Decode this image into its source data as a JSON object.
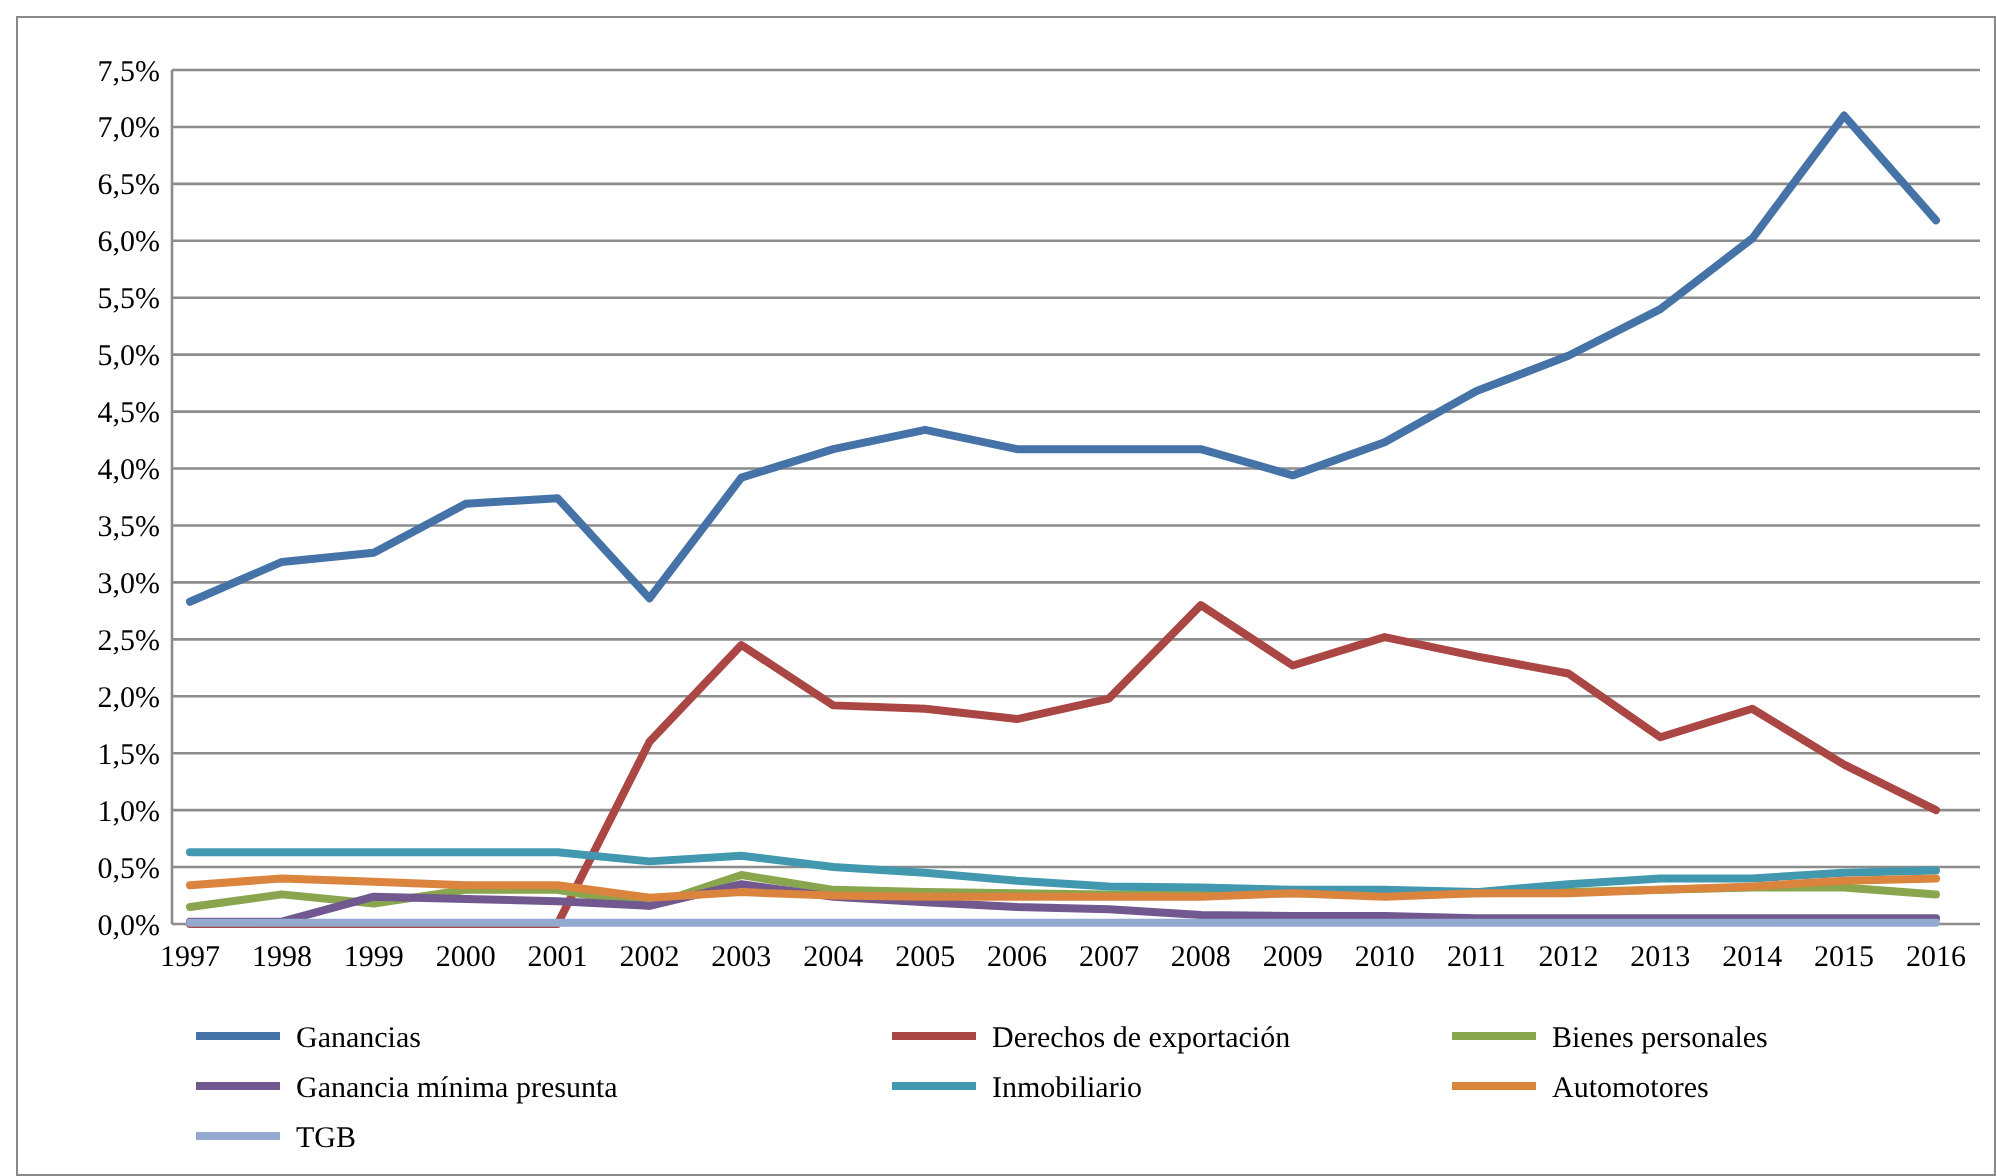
{
  "chart_data": {
    "type": "line",
    "categories": [
      "1997",
      "1998",
      "1999",
      "2000",
      "2001",
      "2002",
      "2003",
      "2004",
      "2005",
      "2006",
      "2007",
      "2008",
      "2009",
      "2010",
      "2011",
      "2012",
      "2013",
      "2014",
      "2015",
      "2016"
    ],
    "ylim": [
      0,
      7.5
    ],
    "yticks": [
      {
        "value": 0,
        "label": "0,0%"
      },
      {
        "value": 0.5,
        "label": "0,5%"
      },
      {
        "value": 1,
        "label": "1,0%"
      },
      {
        "value": 1.5,
        "label": "1,5%"
      },
      {
        "value": 2,
        "label": "2,0%"
      },
      {
        "value": 2.5,
        "label": "2,5%"
      },
      {
        "value": 3,
        "label": "3,0%"
      },
      {
        "value": 3.5,
        "label": "3,5%"
      },
      {
        "value": 4,
        "label": "4,0%"
      },
      {
        "value": 4.5,
        "label": "4,5%"
      },
      {
        "value": 5,
        "label": "5,0%"
      },
      {
        "value": 5.5,
        "label": "5,5%"
      },
      {
        "value": 6,
        "label": "6,0%"
      },
      {
        "value": 6.5,
        "label": "6,5%"
      },
      {
        "value": 7,
        "label": "7,0%"
      },
      {
        "value": 7.5,
        "label": "7,5%"
      }
    ],
    "grid": "y",
    "legend": "bottom",
    "marker": "none",
    "line_style": "solid",
    "series": [
      {
        "name": "Ganancias",
        "color": "#4572a7",
        "values": [
          2.83,
          3.18,
          3.26,
          3.69,
          3.74,
          2.86,
          3.92,
          4.17,
          4.34,
          4.17,
          4.17,
          4.17,
          3.94,
          4.23,
          4.68,
          4.99,
          5.4,
          6.02,
          7.1,
          6.18
        ]
      },
      {
        "name": "Derechos de exportación",
        "color": "#aa4643",
        "values": [
          0,
          0,
          0,
          0,
          0,
          1.6,
          2.45,
          1.92,
          1.89,
          1.8,
          1.98,
          2.8,
          2.27,
          2.52,
          2.35,
          2.2,
          1.64,
          1.89,
          1.4,
          1.0
        ]
      },
      {
        "name": "Bienes personales",
        "color": "#89a54e",
        "values": [
          0.15,
          0.26,
          0.18,
          0.3,
          0.3,
          0.16,
          0.43,
          0.3,
          0.28,
          0.27,
          0.26,
          0.27,
          0.27,
          0.27,
          0.27,
          0.28,
          0.3,
          0.32,
          0.32,
          0.26
        ]
      },
      {
        "name": "Ganancia mínima presunta",
        "color": "#71588f",
        "values": [
          0.02,
          0.02,
          0.24,
          0.22,
          0.2,
          0.16,
          0.35,
          0.24,
          0.19,
          0.15,
          0.13,
          0.08,
          0.07,
          0.07,
          0.05,
          0.05,
          0.05,
          0.05,
          0.05,
          0.05
        ]
      },
      {
        "name": "Inmobiliario",
        "color": "#4198af",
        "values": [
          0.63,
          0.63,
          0.63,
          0.63,
          0.63,
          0.55,
          0.6,
          0.5,
          0.45,
          0.38,
          0.33,
          0.32,
          0.3,
          0.3,
          0.28,
          0.35,
          0.4,
          0.4,
          0.45,
          0.47
        ]
      },
      {
        "name": "Automotores",
        "color": "#db843d",
        "values": [
          0.34,
          0.4,
          0.37,
          0.34,
          0.34,
          0.23,
          0.28,
          0.25,
          0.24,
          0.24,
          0.24,
          0.24,
          0.27,
          0.24,
          0.27,
          0.27,
          0.3,
          0.33,
          0.38,
          0.4
        ]
      },
      {
        "name": "TGB",
        "color": "#93a9cf",
        "values": [
          0.01,
          0.01,
          0.01,
          0.01,
          0.01,
          0.01,
          0.01,
          0.01,
          0.01,
          0.01,
          0.01,
          0.01,
          0.01,
          0.01,
          0.01,
          0.01,
          0.01,
          0.01,
          0.01,
          0.01
        ]
      }
    ]
  }
}
